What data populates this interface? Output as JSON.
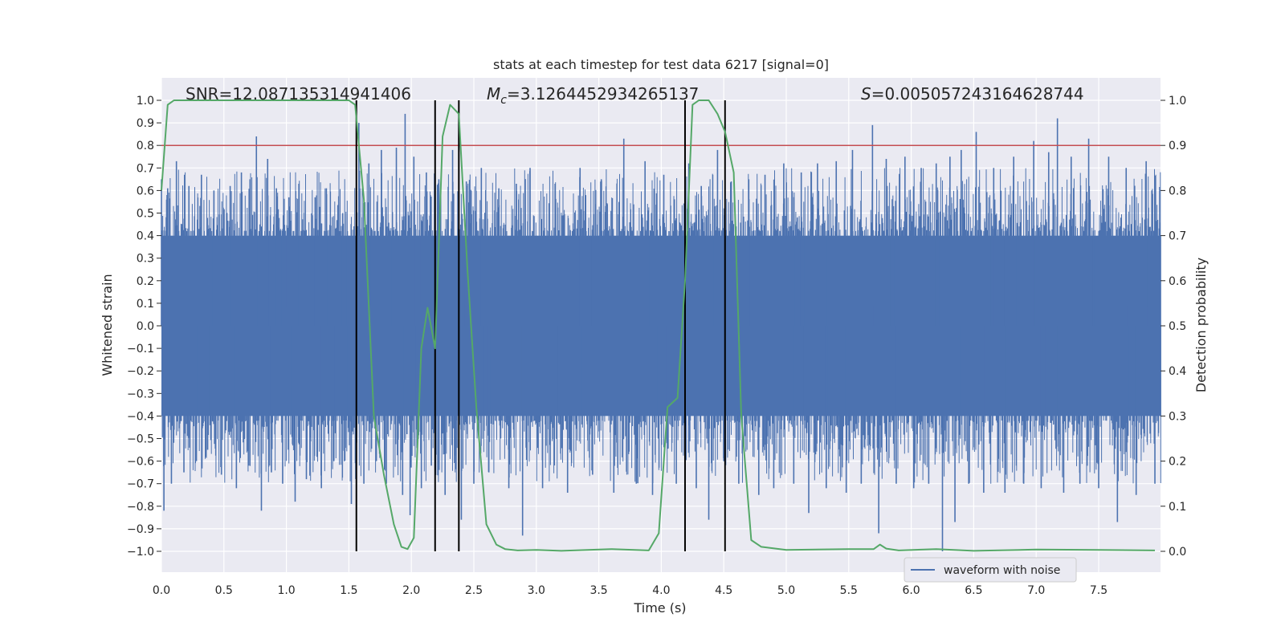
{
  "chart_data": {
    "type": "line",
    "title": "stats at each timestep for test data 6217 [signal=0]",
    "xlabel": "Time (s)",
    "ylabel": "Whitened strain",
    "y2label": "Detection probability",
    "xlim": [
      0.0,
      8.0
    ],
    "ylim": [
      -1.1,
      1.1
    ],
    "y2lim": [
      -0.05,
      1.05
    ],
    "xticks": [
      0.0,
      0.5,
      1.0,
      1.5,
      2.0,
      2.5,
      3.0,
      3.5,
      4.0,
      4.5,
      5.0,
      5.5,
      6.0,
      6.5,
      7.0,
      7.5
    ],
    "yticks": [
      -1.0,
      -0.9,
      -0.8,
      -0.7,
      -0.6,
      -0.5,
      -0.4,
      -0.3,
      -0.2,
      -0.1,
      0.0,
      0.1,
      0.2,
      0.3,
      0.4,
      0.5,
      0.6,
      0.7,
      0.8,
      0.9,
      1.0
    ],
    "y2ticks": [
      0.0,
      0.1,
      0.2,
      0.3,
      0.4,
      0.5,
      0.6,
      0.7,
      0.8,
      0.9,
      1.0
    ],
    "tick_labels": {
      "x": [
        "0.0",
        "0.5",
        "1.0",
        "1.5",
        "2.0",
        "2.5",
        "3.0",
        "3.5",
        "4.0",
        "4.5",
        "5.0",
        "5.5",
        "6.0",
        "6.5",
        "7.0",
        "7.5"
      ],
      "y": [
        "−1.0",
        "−0.9",
        "−0.8",
        "−0.7",
        "−0.6",
        "−0.5",
        "−0.4",
        "−0.3",
        "−0.2",
        "−0.1",
        "0.0",
        "0.1",
        "0.2",
        "0.3",
        "0.4",
        "0.5",
        "0.6",
        "0.7",
        "0.8",
        "0.9",
        "1.0"
      ],
      "y2": [
        "0.0",
        "0.1",
        "0.2",
        "0.3",
        "0.4",
        "0.5",
        "0.6",
        "0.7",
        "0.8",
        "0.9",
        "1.0"
      ]
    },
    "annotations": {
      "snr": "SNR=12.087135314941406",
      "mc_symbol": "M",
      "mc_sub": "c",
      "mc_value": "=3.1264452934265137",
      "s_symbol": "S",
      "s_value": "=0.005057243164628744"
    },
    "legend": {
      "label": "waveform with noise",
      "position": "lower-center-right"
    },
    "threshold": {
      "value": 0.8,
      "color": "#c44e52"
    },
    "vlines": [
      1.56,
      2.19,
      2.38,
      4.19,
      4.51
    ],
    "vline_range": [
      -1.0,
      1.0
    ],
    "waveform": {
      "name": "waveform with noise",
      "color": "#4c72b0",
      "t_start": 0.0,
      "t_end": 8.0,
      "core_band": 0.4,
      "spikes": [
        [
          0.0,
          0.65
        ],
        [
          0.02,
          -0.82
        ],
        [
          0.05,
          0.61
        ],
        [
          0.08,
          -0.7
        ],
        [
          0.12,
          0.73
        ],
        [
          0.18,
          -0.65
        ],
        [
          0.22,
          0.62
        ],
        [
          0.28,
          -0.6
        ],
        [
          0.32,
          0.67
        ],
        [
          0.37,
          -0.55
        ],
        [
          0.42,
          0.6
        ],
        [
          0.48,
          -0.66
        ],
        [
          0.55,
          0.62
        ],
        [
          0.6,
          -0.72
        ],
        [
          0.64,
          0.68
        ],
        [
          0.7,
          -0.62
        ],
        [
          0.76,
          0.84
        ],
        [
          0.8,
          -0.82
        ],
        [
          0.85,
          0.74
        ],
        [
          0.88,
          -0.65
        ],
        [
          0.92,
          0.61
        ],
        [
          0.97,
          -0.7
        ],
        [
          1.02,
          0.57
        ],
        [
          1.07,
          -0.78
        ],
        [
          1.1,
          0.63
        ],
        [
          1.16,
          -0.68
        ],
        [
          1.23,
          0.57
        ],
        [
          1.28,
          -0.72
        ],
        [
          1.32,
          0.61
        ],
        [
          1.38,
          -0.6
        ],
        [
          1.45,
          0.5
        ],
        [
          1.52,
          -0.79
        ],
        [
          1.58,
          0.9
        ],
        [
          1.62,
          -0.7
        ],
        [
          1.66,
          0.72
        ],
        [
          1.72,
          -0.6
        ],
        [
          1.76,
          0.78
        ],
        [
          1.8,
          -0.7
        ],
        [
          1.88,
          0.79
        ],
        [
          1.93,
          -0.75
        ],
        [
          1.95,
          0.94
        ],
        [
          1.99,
          -0.84
        ],
        [
          2.02,
          0.75
        ],
        [
          2.08,
          -0.72
        ],
        [
          2.12,
          0.68
        ],
        [
          2.16,
          -0.62
        ],
        [
          2.22,
          0.65
        ],
        [
          2.27,
          -0.75
        ],
        [
          2.33,
          0.78
        ],
        [
          2.4,
          -0.86
        ],
        [
          2.44,
          0.64
        ],
        [
          2.5,
          -0.7
        ],
        [
          2.56,
          0.7
        ],
        [
          2.62,
          -0.65
        ],
        [
          2.7,
          0.61
        ],
        [
          2.78,
          -0.72
        ],
        [
          2.84,
          0.63
        ],
        [
          2.89,
          -0.93
        ],
        [
          2.95,
          0.7
        ],
        [
          3.05,
          -0.72
        ],
        [
          3.15,
          0.63
        ],
        [
          3.25,
          -0.74
        ],
        [
          3.35,
          0.7
        ],
        [
          3.45,
          -0.66
        ],
        [
          3.52,
          0.65
        ],
        [
          3.62,
          -0.74
        ],
        [
          3.7,
          0.83
        ],
        [
          3.8,
          -0.7
        ],
        [
          3.87,
          0.73
        ],
        [
          3.93,
          -0.75
        ],
        [
          4.02,
          0.67
        ],
        [
          4.12,
          -0.7
        ],
        [
          4.22,
          0.72
        ],
        [
          4.28,
          -0.72
        ],
        [
          4.32,
          0.62
        ],
        [
          4.38,
          -0.86
        ],
        [
          4.45,
          0.78
        ],
        [
          4.5,
          -0.6
        ],
        [
          4.56,
          0.64
        ],
        [
          4.62,
          -0.7
        ],
        [
          4.7,
          0.65
        ],
        [
          4.78,
          -0.75
        ],
        [
          4.83,
          0.67
        ],
        [
          4.9,
          -0.72
        ],
        [
          4.98,
          0.72
        ],
        [
          5.06,
          -0.7
        ],
        [
          5.12,
          0.68
        ],
        [
          5.18,
          -0.83
        ],
        [
          5.25,
          0.72
        ],
        [
          5.32,
          -0.72
        ],
        [
          5.4,
          0.73
        ],
        [
          5.48,
          -0.74
        ],
        [
          5.53,
          0.78
        ],
        [
          5.6,
          -0.7
        ],
        [
          5.69,
          0.89
        ],
        [
          5.74,
          -0.92
        ],
        [
          5.8,
          0.74
        ],
        [
          5.88,
          -0.7
        ],
        [
          5.95,
          0.75
        ],
        [
          6.02,
          -0.72
        ],
        [
          6.08,
          0.7
        ],
        [
          6.14,
          -0.7
        ],
        [
          6.2,
          0.72
        ],
        [
          6.25,
          -1.0
        ],
        [
          6.31,
          0.75
        ],
        [
          6.35,
          -0.87
        ],
        [
          6.4,
          0.78
        ],
        [
          6.46,
          -0.7
        ],
        [
          6.52,
          0.86
        ],
        [
          6.58,
          -0.74
        ],
        [
          6.66,
          0.7
        ],
        [
          6.75,
          -0.74
        ],
        [
          6.82,
          0.75
        ],
        [
          6.9,
          -0.7
        ],
        [
          6.98,
          0.82
        ],
        [
          7.04,
          -0.72
        ],
        [
          7.1,
          0.77
        ],
        [
          7.17,
          0.92
        ],
        [
          7.22,
          -0.74
        ],
        [
          7.28,
          0.75
        ],
        [
          7.35,
          -0.7
        ],
        [
          7.42,
          0.83
        ],
        [
          7.5,
          -0.72
        ],
        [
          7.58,
          0.75
        ],
        [
          7.65,
          -0.87
        ],
        [
          7.72,
          0.7
        ],
        [
          7.8,
          -0.75
        ],
        [
          7.88,
          0.73
        ],
        [
          7.95,
          -0.7
        ]
      ]
    },
    "probability": {
      "name": "detection probability",
      "color": "#55a868",
      "x": [
        0.0,
        0.05,
        0.1,
        0.5,
        1.0,
        1.5,
        1.55,
        1.62,
        1.7,
        1.78,
        1.86,
        1.92,
        1.97,
        2.02,
        2.08,
        2.13,
        2.19,
        2.25,
        2.31,
        2.38,
        2.45,
        2.52,
        2.6,
        2.68,
        2.75,
        2.85,
        3.0,
        3.2,
        3.6,
        3.9,
        3.98,
        4.05,
        4.13,
        4.19,
        4.25,
        4.3,
        4.38,
        4.45,
        4.51,
        4.58,
        4.64,
        4.72,
        4.8,
        5.0,
        5.5,
        5.7,
        5.75,
        5.8,
        5.9,
        6.2,
        6.5,
        7.0,
        7.5,
        7.95
      ],
      "y": [
        0.8,
        0.99,
        1.0,
        1.0,
        1.0,
        1.0,
        0.99,
        0.78,
        0.3,
        0.17,
        0.06,
        0.01,
        0.005,
        0.03,
        0.45,
        0.54,
        0.45,
        0.92,
        0.99,
        0.97,
        0.62,
        0.32,
        0.06,
        0.015,
        0.005,
        0.002,
        0.003,
        0.001,
        0.005,
        0.002,
        0.04,
        0.32,
        0.34,
        0.6,
        0.99,
        1.0,
        1.0,
        0.97,
        0.93,
        0.84,
        0.3,
        0.025,
        0.01,
        0.003,
        0.005,
        0.005,
        0.015,
        0.006,
        0.002,
        0.005,
        0.001,
        0.004,
        0.003,
        0.002
      ]
    }
  }
}
